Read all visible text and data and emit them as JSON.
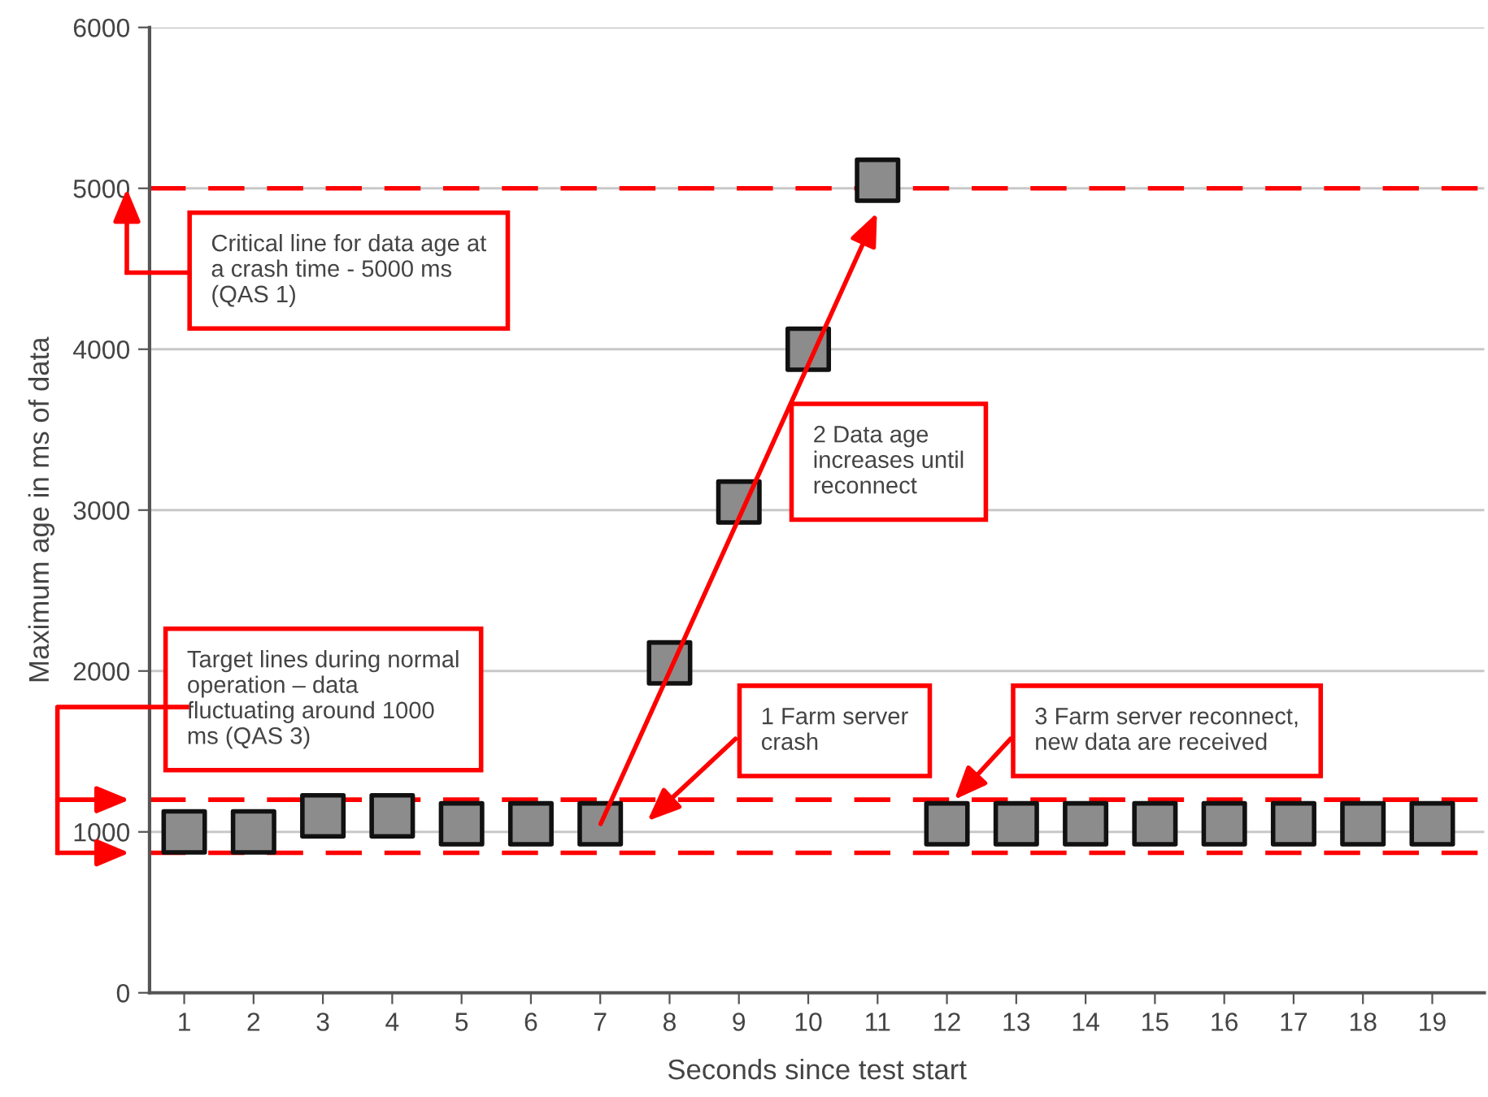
{
  "chart_data": {
    "type": "scatter",
    "xlabel": "Seconds since test start",
    "ylabel": "Maximum age in ms of data",
    "x": [
      1,
      2,
      3,
      4,
      5,
      6,
      7,
      8,
      9,
      10,
      11,
      12,
      13,
      14,
      15,
      16,
      17,
      18,
      19
    ],
    "values": [
      1000,
      1000,
      1100,
      1100,
      1050,
      1050,
      1050,
      2050,
      3050,
      4000,
      5050,
      1050,
      1050,
      1050,
      1050,
      1050,
      1050,
      1050,
      1050
    ],
    "color": "#8c8c8c",
    "marker": "square",
    "xlim": [
      0.5,
      19.75
    ],
    "xticks": [
      1,
      2,
      3,
      4,
      5,
      6,
      7,
      8,
      9,
      10,
      11,
      12,
      13,
      14,
      15,
      16,
      17,
      18,
      19
    ],
    "ylim": [
      0,
      6000
    ],
    "yticks": [
      0,
      1000,
      2000,
      3000,
      4000,
      5000,
      6000
    ],
    "grid": "y",
    "legend": false,
    "ref_lines": [
      {
        "axis": "y",
        "value": 5000,
        "color": "#ff0000",
        "line_style": "dashed"
      },
      {
        "axis": "y",
        "value": 1200,
        "color": "#ff0000",
        "line_style": "dashed"
      },
      {
        "axis": "y",
        "value": 870,
        "color": "#ff0000",
        "line_style": "dashed"
      }
    ],
    "annotations": [
      "Critical line for data age at\na crash time - 5000 ms\n(QAS 1)",
      "2 Data age\nincreases until\nreconnect",
      "Target lines during normal\noperation – data\nfluctuating around 1000\nms (QAS 3)",
      "1 Farm server\ncrash",
      "3 Farm server reconnect,\nnew data are received"
    ]
  }
}
